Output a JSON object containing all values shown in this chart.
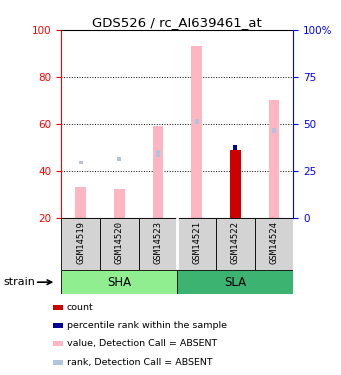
{
  "title": "GDS526 / rc_AI639461_at",
  "samples": [
    "GSM14519",
    "GSM14520",
    "GSM14523",
    "GSM14521",
    "GSM14522",
    "GSM14524"
  ],
  "ylim_left": [
    20,
    100
  ],
  "yticks_left": [
    20,
    40,
    60,
    80,
    100
  ],
  "ytick_labels_right": [
    "0",
    "25",
    "50",
    "75",
    "100%"
  ],
  "dotted_lines": [
    40,
    60,
    80
  ],
  "bar_color_absent_value": "#FFB6C1",
  "bar_color_absent_rank": "#B0C4DE",
  "bar_color_count": "#CC0000",
  "bar_color_rank": "#000099",
  "absent_value_bars": {
    "GSM14519": [
      20,
      33
    ],
    "GSM14520": [
      20,
      32
    ],
    "GSM14523": [
      20,
      59
    ],
    "GSM14521": [
      20,
      93
    ],
    "GSM14522": [
      20,
      20
    ],
    "GSM14524": [
      20,
      70
    ]
  },
  "absent_rank_bars": {
    "GSM14519": [
      43,
      44
    ],
    "GSM14520": [
      44,
      46
    ],
    "GSM14523": [
      46,
      49
    ],
    "GSM14521": [
      60,
      62
    ],
    "GSM14522": [
      20,
      20
    ],
    "GSM14524": [
      56,
      58
    ]
  },
  "count_bars": {
    "GSM14522": [
      20,
      49
    ]
  },
  "rank_bars": {
    "GSM14522": [
      49,
      51
    ]
  },
  "sha_color": "#90EE90",
  "sla_color": "#3CB371",
  "gray_box_color": "#D3D3D3",
  "legend_items": [
    {
      "label": "count",
      "color": "#CC0000"
    },
    {
      "label": "percentile rank within the sample",
      "color": "#000099"
    },
    {
      "label": "value, Detection Call = ABSENT",
      "color": "#FFB6C1"
    },
    {
      "label": "rank, Detection Call = ABSENT",
      "color": "#B0C4DE"
    }
  ]
}
